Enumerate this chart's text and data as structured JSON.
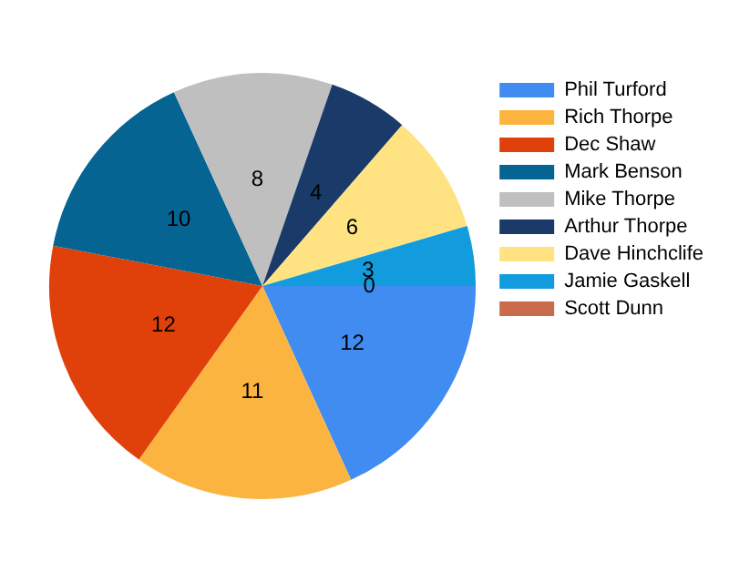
{
  "chart_data": {
    "type": "pie",
    "categories": [
      "Phil Turford",
      "Rich Thorpe",
      "Dec Shaw",
      "Mark Benson",
      "Mike Thorpe",
      "Arthur Thorpe",
      "Dave Hinchclife",
      "Jamie Gaskell",
      "Scott Dunn"
    ],
    "values": [
      12,
      11,
      12,
      10,
      8,
      4,
      6,
      3,
      0
    ],
    "colors": [
      "#418cf0",
      "#fcb441",
      "#e0400a",
      "#056492",
      "#bfbfbf",
      "#1a3b69",
      "#ffe382",
      "#129cdd",
      "#ca6b4b"
    ],
    "value_labels": [
      "12",
      "11",
      "12",
      "10",
      "8",
      "4",
      "6",
      "3",
      "0"
    ],
    "legend": "top right"
  }
}
